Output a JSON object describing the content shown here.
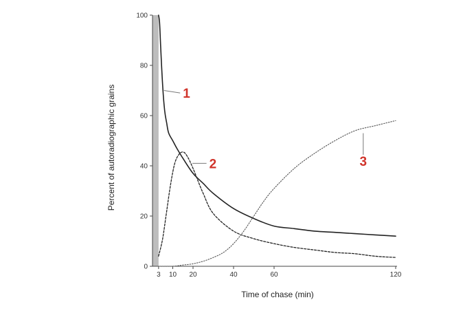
{
  "chart_data": {
    "type": "line",
    "title": "",
    "xlabel": "Time of chase (min)",
    "ylabel": "Percent of autoradiographic grains",
    "xlim": [
      0,
      120
    ],
    "ylim": [
      0,
      100
    ],
    "x_ticks": [
      3,
      10,
      20,
      40,
      60,
      120
    ],
    "y_ticks": [
      0,
      20,
      40,
      60,
      80,
      100
    ],
    "grid": false,
    "shaded_region": {
      "x_start": 0,
      "x_end": 3,
      "color": "#bdbdbd"
    },
    "series": [
      {
        "name": "1",
        "style": "solid",
        "color": "#222222",
        "label_color": "#d0332a",
        "x": [
          3,
          3.5,
          4,
          5,
          6,
          7,
          8,
          10,
          12,
          15,
          20,
          25,
          30,
          40,
          50,
          60,
          70,
          80,
          90,
          100,
          110,
          120
        ],
        "y": [
          100,
          97,
          88,
          72,
          62,
          57,
          53,
          50,
          47,
          43,
          37,
          33,
          29,
          23,
          19,
          16,
          15,
          14,
          13.5,
          13,
          12.5,
          12
        ]
      },
      {
        "name": "2",
        "style": "dashed",
        "color": "#222222",
        "label_color": "#d0332a",
        "x": [
          3,
          5,
          7,
          9,
          11,
          13,
          15,
          17,
          20,
          25,
          30,
          40,
          50,
          60,
          70,
          80,
          90,
          100,
          110,
          120
        ],
        "y": [
          4,
          11,
          22,
          33,
          41,
          44.5,
          45.5,
          44,
          39,
          29,
          21,
          14,
          11,
          9,
          7.5,
          6.5,
          5.5,
          5,
          4,
          3.5
        ]
      },
      {
        "name": "3",
        "style": "dotted",
        "color": "#555555",
        "label_color": "#d0332a",
        "x": [
          3,
          10,
          15,
          20,
          25,
          30,
          35,
          40,
          45,
          50,
          55,
          60,
          70,
          80,
          90,
          100,
          110,
          120
        ],
        "y": [
          0,
          0,
          0.5,
          1,
          2,
          3.5,
          5.5,
          9,
          14,
          20,
          26,
          31,
          39,
          45,
          50,
          54,
          56,
          58
        ]
      }
    ],
    "callouts": [
      {
        "label": "1",
        "series": "1",
        "at_x": 5,
        "at_y": 70,
        "label_x": 15,
        "label_y": 69
      },
      {
        "label": "2",
        "series": "2",
        "at_x": 19,
        "at_y": 41,
        "label_x": 28,
        "label_y": 41
      },
      {
        "label": "3",
        "series": "3",
        "at_x": 104,
        "at_y": 53,
        "label_x": 104,
        "label_y": 40
      }
    ]
  }
}
